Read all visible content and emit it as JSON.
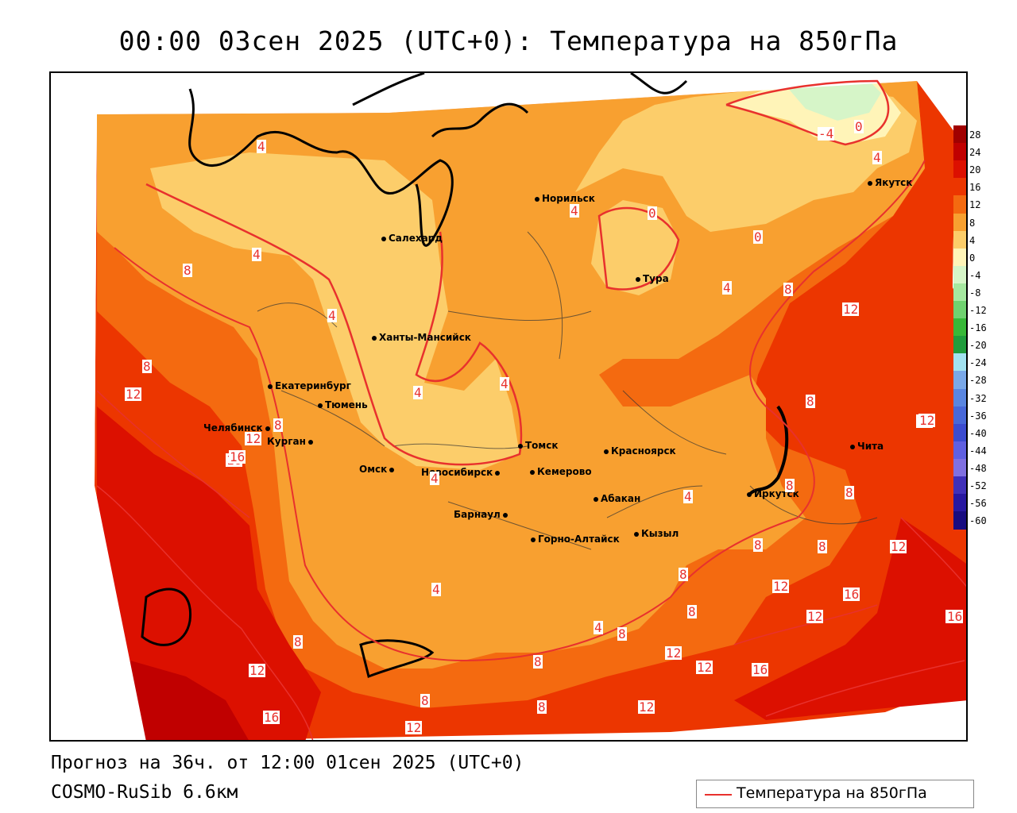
{
  "title": "00:00 03сен 2025 (UTC+0): Температура на 850гПа",
  "forecast_line": "Прогноз на 36ч. от 12:00 01сен 2025 (UTC+0)",
  "model_line": "COSMO-RuSib 6.6км",
  "legend_label": "Температура на 850гПа",
  "contour_color": "#e8312d",
  "colorbar": {
    "ticks": [
      "28",
      "24",
      "20",
      "16",
      "12",
      "8",
      "4",
      "0",
      "-4",
      "-8",
      "-12",
      "-16",
      "-20",
      "-24",
      "-28",
      "-32",
      "-36",
      "-40",
      "-44",
      "-48",
      "-52",
      "-56",
      "-60"
    ],
    "colors": [
      "#a00000",
      "#c00000",
      "#dc1000",
      "#ec3600",
      "#f46a10",
      "#f8a030",
      "#fccd6a",
      "#fff4b8",
      "#d6f5c8",
      "#a6e8a0",
      "#70d270",
      "#38b838",
      "#209c3c",
      "#a2e2f0",
      "#7aa8e8",
      "#5a86e0",
      "#4868d8",
      "#3c4cd0",
      "#6060e0",
      "#8070e0",
      "#4030b8",
      "#2818a0",
      "#180c80"
    ]
  },
  "cities": [
    {
      "name": "Норильск"
    },
    {
      "name": "Якутск"
    },
    {
      "name": "Салехард"
    },
    {
      "name": "Тура"
    },
    {
      "name": "Ханты-Мансийск"
    },
    {
      "name": "Екатеринбург"
    },
    {
      "name": "Тюмень"
    },
    {
      "name": "Челябинск"
    },
    {
      "name": "Курган"
    },
    {
      "name": "Омск"
    },
    {
      "name": "Новосибирск"
    },
    {
      "name": "Томск"
    },
    {
      "name": "Кемерово"
    },
    {
      "name": "Красноярск"
    },
    {
      "name": "Абакан"
    },
    {
      "name": "Барнаул"
    },
    {
      "name": "Горно-Алтайск"
    },
    {
      "name": "Кызыл"
    },
    {
      "name": "Иркутск"
    },
    {
      "name": "Чита"
    }
  ],
  "contour_labels": [
    "-4",
    "0",
    "4",
    "4",
    "4",
    "0",
    "0",
    "8",
    "4",
    "4",
    "8",
    "12",
    "8",
    "4",
    "4",
    "4",
    "12",
    "8",
    "12",
    "8",
    "12",
    "8",
    "12",
    "16",
    "4",
    "4",
    "8",
    "8",
    "12",
    "8",
    "12",
    "16",
    "12",
    "16",
    "8",
    "12",
    "16",
    "4",
    "8",
    "12",
    "12",
    "16",
    "16",
    "8",
    "12",
    "8",
    "4",
    "8",
    "8",
    "8",
    "12",
    "16"
  ]
}
